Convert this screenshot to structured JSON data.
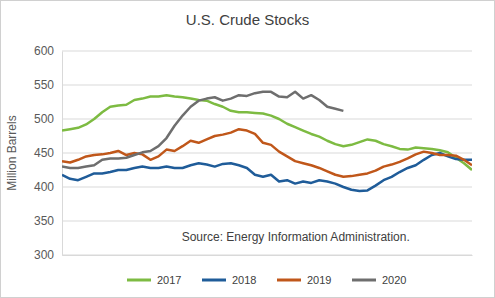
{
  "chart_data": {
    "type": "line",
    "title": "U.S. Crude Stocks",
    "y_label": "Million Barrels",
    "annotations": [
      "Source: Energy Information Administration."
    ],
    "x": [
      1,
      2,
      3,
      4,
      5,
      6,
      7,
      8,
      9,
      10,
      11,
      12,
      13,
      14,
      15,
      16,
      17,
      18,
      19,
      20,
      21,
      22,
      23,
      24,
      25,
      26,
      27,
      28,
      29,
      30,
      31,
      32,
      33,
      34,
      35,
      36,
      37,
      38,
      39,
      40,
      41,
      42,
      43,
      44,
      45,
      46,
      47,
      48,
      49,
      50,
      51,
      52
    ],
    "xlim": [
      1,
      52
    ],
    "ylim": [
      300,
      600
    ],
    "yticks": [
      300,
      350,
      400,
      450,
      500,
      550,
      600
    ],
    "grid": true,
    "legend": "bottom",
    "tick_labels": "y",
    "series": [
      {
        "name": "2017",
        "color": "#7dbb42",
        "values": [
          483,
          485,
          487,
          492,
          500,
          510,
          518,
          520,
          521,
          528,
          530,
          533,
          533,
          535,
          533,
          532,
          530,
          528,
          527,
          522,
          518,
          512,
          510,
          510,
          509,
          508,
          505,
          500,
          493,
          488,
          483,
          478,
          474,
          468,
          463,
          460,
          462,
          466,
          470,
          468,
          463,
          460,
          456,
          455,
          458,
          457,
          456,
          454,
          451,
          443,
          435,
          425
        ]
      },
      {
        "name": "2018",
        "color": "#1f5c99",
        "values": [
          418,
          412,
          410,
          415,
          420,
          420,
          422,
          425,
          425,
          428,
          430,
          428,
          428,
          430,
          428,
          428,
          432,
          435,
          433,
          430,
          434,
          435,
          432,
          428,
          418,
          415,
          418,
          408,
          410,
          405,
          408,
          406,
          410,
          408,
          405,
          400,
          396,
          394,
          395,
          402,
          410,
          415,
          422,
          428,
          432,
          440,
          447,
          450,
          445,
          441,
          440,
          440
        ]
      },
      {
        "name": "2019",
        "color": "#c0571a",
        "values": [
          438,
          436,
          440,
          445,
          447,
          448,
          450,
          453,
          447,
          450,
          448,
          440,
          445,
          455,
          453,
          460,
          468,
          465,
          470,
          475,
          477,
          480,
          485,
          483,
          478,
          465,
          462,
          452,
          445,
          438,
          435,
          432,
          428,
          423,
          418,
          415,
          416,
          418,
          420,
          424,
          430,
          433,
          437,
          442,
          448,
          452,
          450,
          447,
          447,
          446,
          440,
          432
        ]
      },
      {
        "name": "2020",
        "color": "#6e6e6e",
        "values": [
          430,
          428,
          428,
          430,
          432,
          440,
          442,
          442,
          443,
          447,
          451,
          453,
          460,
          472,
          490,
          505,
          518,
          527,
          530,
          532,
          527,
          530,
          535,
          534,
          538,
          540,
          540,
          533,
          532,
          540,
          530,
          535,
          528,
          518,
          515,
          512,
          null,
          null,
          null,
          null,
          null,
          null,
          null,
          null,
          null,
          null,
          null,
          null,
          null,
          null,
          null,
          null
        ]
      }
    ]
  }
}
